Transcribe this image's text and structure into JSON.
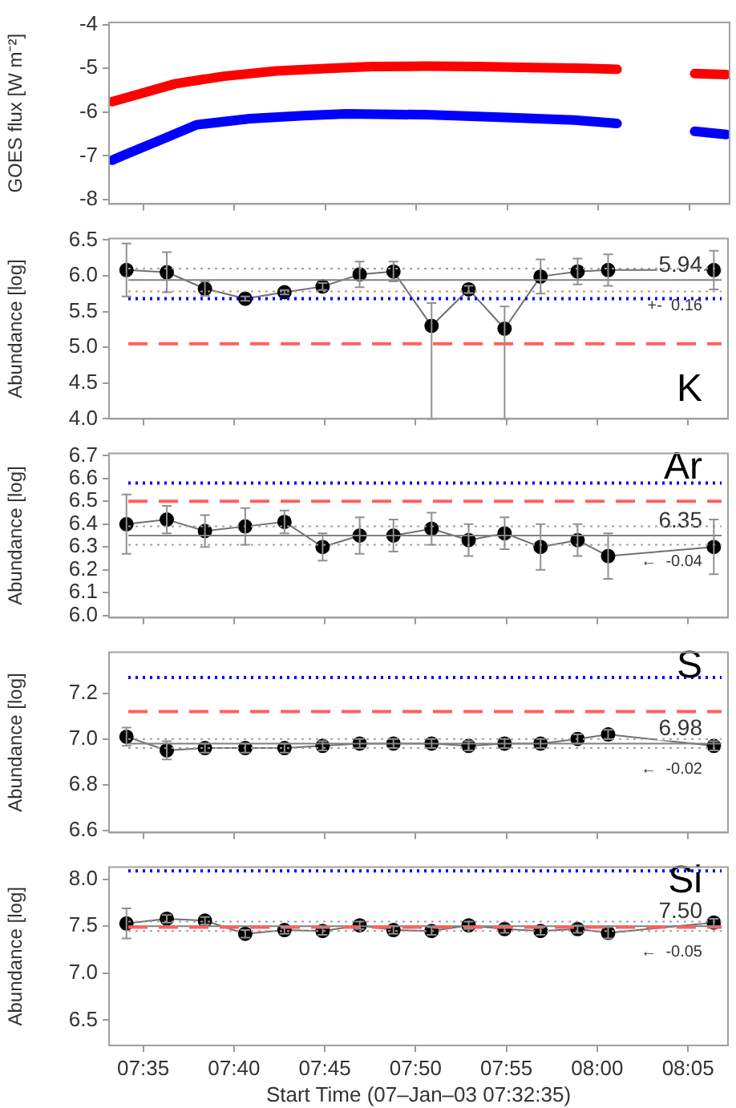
{
  "chart_data": [
    {
      "type": "line",
      "ylabel": "GOES flux [W m⁻²]",
      "legend": false,
      "marker": "none",
      "tick_labels": "y",
      "xlim": [
        7.552,
        8.12
      ],
      "xticks": [
        {
          "value": 7.58333,
          "label": null
        },
        {
          "value": 7.66667,
          "label": null
        },
        {
          "value": 7.75,
          "label": null
        },
        {
          "value": 7.83333,
          "label": null
        },
        {
          "value": 7.91667,
          "label": null
        },
        {
          "value": 8.0,
          "label": null
        },
        {
          "value": 8.08333,
          "label": null
        }
      ],
      "ylim": [
        -8.1,
        -3.95
      ],
      "yticks": [
        -8,
        -7,
        -6,
        -5,
        -4
      ],
      "series": [
        {
          "color": "#ff0000",
          "x": [
            7.555,
            7.579,
            7.613,
            7.657,
            7.705,
            7.754,
            7.793,
            7.842,
            7.89,
            7.939,
            7.988,
            8.017,
            8.05,
            8.088,
            8.117
          ],
          "values": [
            -5.76,
            -5.59,
            -5.35,
            -5.18,
            -5.06,
            -5.0,
            -4.96,
            -4.95,
            -4.96,
            -4.98,
            -5.0,
            -5.02,
            null,
            -5.12,
            -5.14
          ]
        },
        {
          "color": "#0000ff",
          "x": [
            7.555,
            7.566,
            7.598,
            7.632,
            7.681,
            7.73,
            7.769,
            7.842,
            7.915,
            7.978,
            8.017,
            8.05,
            8.088,
            8.117
          ],
          "values": [
            -7.1,
            -6.98,
            -6.65,
            -6.29,
            -6.15,
            -6.08,
            -6.04,
            -6.06,
            -6.12,
            -6.18,
            -6.26,
            null,
            -6.44,
            -6.51
          ]
        }
      ]
    },
    {
      "type": "line",
      "title": "K",
      "ylabel": "Abundance [log]",
      "legend": false,
      "marker": "circle",
      "tick_labels": "y",
      "xlim": [
        7.552,
        8.12
      ],
      "xticks": [
        {
          "value": 7.58333,
          "label": null
        },
        {
          "value": 7.66667,
          "label": null
        },
        {
          "value": 7.75,
          "label": null
        },
        {
          "value": 7.83333,
          "label": null
        },
        {
          "value": 7.91667,
          "label": null
        },
        {
          "value": 8.0,
          "label": null
        },
        {
          "value": 8.08333,
          "label": null
        }
      ],
      "ylim": [
        4.0,
        6.52
      ],
      "yticks": [
        {
          "value": 4,
          "label": "4.0"
        },
        4.5,
        {
          "value": 5,
          "label": "5.0"
        },
        5.5,
        {
          "value": 6,
          "label": "6.0"
        },
        6.5
      ],
      "x": [
        7.568,
        7.605,
        7.64,
        7.677,
        7.713,
        7.748,
        7.782,
        7.813,
        7.848,
        7.882,
        7.915,
        7.948,
        7.982,
        8.01,
        8.107
      ],
      "series": [
        {
          "color": "#000000",
          "values": [
            6.08,
            6.05,
            5.82,
            5.68,
            5.77,
            5.85,
            6.02,
            6.06,
            5.3,
            5.81,
            5.26,
            5.99,
            6.06,
            6.08,
            6.08
          ],
          "errors": [
            0.37,
            0.28,
            0.1,
            0.03,
            0.03,
            0.05,
            0.18,
            0.14,
            [
              4.0,
              5.62
            ],
            0.05,
            [
              4.0,
              5.57
            ],
            0.24,
            0.18,
            0.22,
            0.27
          ]
        }
      ],
      "ref_lines": [
        {
          "axis": "y",
          "value": 5.94,
          "label": "5.94",
          "color": "#808080",
          "line_style": "solid"
        },
        {
          "axis": "y",
          "value": 6.1,
          "color": "#a0a0a0",
          "line_style": "dotted"
        },
        {
          "axis": "y",
          "value": 5.78,
          "color": "#a0a0a0",
          "line_style": "dotted"
        },
        {
          "axis": "y",
          "value": 5.68,
          "color": "#0000ff",
          "line_style": "dotted"
        },
        {
          "axis": "y",
          "value": 5.05,
          "color": "#ff6060",
          "line_style": "dashed"
        }
      ],
      "annotations": [
        "+-  0.16"
      ]
    },
    {
      "type": "line",
      "title": "Ar",
      "ylabel": "Abundance [log]",
      "legend": false,
      "marker": "circle",
      "tick_labels": "y",
      "xlim": [
        7.552,
        8.12
      ],
      "xticks": [
        {
          "value": 7.58333,
          "label": null
        },
        {
          "value": 7.66667,
          "label": null
        },
        {
          "value": 7.75,
          "label": null
        },
        {
          "value": 7.83333,
          "label": null
        },
        {
          "value": 7.91667,
          "label": null
        },
        {
          "value": 8.0,
          "label": null
        },
        {
          "value": 8.08333,
          "label": null
        }
      ],
      "ylim": [
        5.99,
        6.71
      ],
      "yticks": [
        {
          "value": 6,
          "label": "6.0"
        },
        6.1,
        6.2,
        6.3,
        6.4,
        6.5,
        6.6,
        6.7
      ],
      "x": [
        7.568,
        7.605,
        7.64,
        7.677,
        7.713,
        7.748,
        7.782,
        7.813,
        7.848,
        7.882,
        7.915,
        7.948,
        7.982,
        8.01,
        8.107
      ],
      "series": [
        {
          "color": "#000000",
          "values": [
            6.4,
            6.42,
            6.37,
            6.39,
            6.41,
            6.3,
            6.35,
            6.35,
            6.38,
            6.33,
            6.36,
            6.3,
            6.33,
            6.26,
            6.3
          ],
          "errors": [
            0.13,
            0.06,
            0.07,
            0.08,
            0.05,
            0.06,
            0.08,
            0.07,
            0.07,
            0.07,
            0.07,
            0.1,
            0.07,
            0.1,
            0.12
          ]
        }
      ],
      "ref_lines": [
        {
          "axis": "y",
          "value": 6.35,
          "label": "6.35",
          "color": "#808080",
          "line_style": "solid"
        },
        {
          "axis": "y",
          "value": 6.39,
          "color": "#a0a0a0",
          "line_style": "dotted"
        },
        {
          "axis": "y",
          "value": 6.31,
          "color": "#a0a0a0",
          "line_style": "dotted"
        },
        {
          "axis": "y",
          "value": 6.58,
          "color": "#0000ff",
          "line_style": "dotted"
        },
        {
          "axis": "y",
          "value": 6.5,
          "color": "#ff6060",
          "line_style": "dashed"
        }
      ],
      "annotations": [
        "←  -0.04"
      ]
    },
    {
      "type": "line",
      "title": "S",
      "ylabel": "Abundance [log]",
      "legend": false,
      "marker": "circle",
      "tick_labels": "y",
      "xlim": [
        7.552,
        8.12
      ],
      "xticks": [
        {
          "value": 7.58333,
          "label": null
        },
        {
          "value": 7.66667,
          "label": null
        },
        {
          "value": 7.75,
          "label": null
        },
        {
          "value": 7.83333,
          "label": null
        },
        {
          "value": 7.91667,
          "label": null
        },
        {
          "value": 8.0,
          "label": null
        },
        {
          "value": 8.08333,
          "label": null
        }
      ],
      "ylim": [
        6.59,
        7.38
      ],
      "yticks": [
        6.6,
        6.8,
        {
          "value": 7,
          "label": "7.0"
        },
        7.2
      ],
      "x": [
        7.568,
        7.605,
        7.64,
        7.677,
        7.713,
        7.748,
        7.782,
        7.813,
        7.848,
        7.882,
        7.915,
        7.948,
        7.982,
        8.01,
        8.107
      ],
      "series": [
        {
          "color": "#000000",
          "values": [
            7.01,
            6.95,
            6.96,
            6.96,
            6.96,
            6.97,
            6.98,
            6.98,
            6.98,
            6.97,
            6.98,
            6.98,
            7.0,
            7.02,
            6.97
          ],
          "errors": [
            0.04,
            0.04,
            0.02,
            0.02,
            0.02,
            0.02,
            0.02,
            0.02,
            0.02,
            0.02,
            0.02,
            0.02,
            0.02,
            0.02,
            0.02
          ]
        }
      ],
      "ref_lines": [
        {
          "axis": "y",
          "value": 6.98,
          "label": "6.98",
          "color": "#808080",
          "line_style": "solid"
        },
        {
          "axis": "y",
          "value": 7.0,
          "color": "#a0a0a0",
          "line_style": "dotted"
        },
        {
          "axis": "y",
          "value": 6.96,
          "color": "#a0a0a0",
          "line_style": "dotted"
        },
        {
          "axis": "y",
          "value": 7.27,
          "color": "#0000ff",
          "line_style": "dotted"
        },
        {
          "axis": "y",
          "value": 7.12,
          "color": "#ff6060",
          "line_style": "dashed"
        }
      ],
      "annotations": [
        "←  -0.02"
      ]
    },
    {
      "type": "line",
      "title": "Si",
      "ylabel": "Abundance [log]",
      "xlabel": "Start Time (07–Jan–03 07:32:35)",
      "legend": false,
      "marker": "circle",
      "xlim": [
        7.552,
        8.12
      ],
      "xticks": [
        {
          "value": 7.58333,
          "label": "07:35"
        },
        {
          "value": 7.66667,
          "label": "07:40"
        },
        {
          "value": 7.75,
          "label": "07:45"
        },
        {
          "value": 7.83333,
          "label": "07:50"
        },
        {
          "value": 7.91667,
          "label": "07:55"
        },
        {
          "value": 8.0,
          "label": "08:00"
        },
        {
          "value": 8.08333,
          "label": "08:05"
        }
      ],
      "ylim": [
        6.23,
        8.13
      ],
      "yticks": [
        6.5,
        {
          "value": 7,
          "label": "7.0"
        },
        7.5,
        {
          "value": 8,
          "label": "8.0"
        }
      ],
      "x": [
        7.568,
        7.605,
        7.64,
        7.677,
        7.713,
        7.748,
        7.782,
        7.813,
        7.848,
        7.882,
        7.915,
        7.948,
        7.982,
        8.01,
        8.107
      ],
      "series": [
        {
          "color": "#000000",
          "values": [
            7.53,
            7.58,
            7.56,
            7.42,
            7.46,
            7.45,
            7.51,
            7.46,
            7.45,
            7.51,
            7.47,
            7.45,
            7.47,
            7.43,
            7.54
          ],
          "errors": [
            0.16,
            0.04,
            0.04,
            0.04,
            0.04,
            0.04,
            0.04,
            0.04,
            0.04,
            0.04,
            0.04,
            0.04,
            0.04,
            0.06,
            0.04
          ]
        }
      ],
      "ref_lines": [
        {
          "axis": "y",
          "value": 7.5,
          "label": "7.50",
          "color": "#808080",
          "line_style": "solid"
        },
        {
          "axis": "y",
          "value": 7.55,
          "color": "#a0a0a0",
          "line_style": "dotted"
        },
        {
          "axis": "y",
          "value": 7.45,
          "color": "#a0a0a0",
          "line_style": "dotted"
        },
        {
          "axis": "y",
          "value": 8.09,
          "color": "#0000ff",
          "line_style": "dotted"
        },
        {
          "axis": "y",
          "value": 7.49,
          "color": "#ff6060",
          "line_style": "dashed"
        }
      ],
      "annotations": [
        "←  -0.05"
      ]
    }
  ]
}
